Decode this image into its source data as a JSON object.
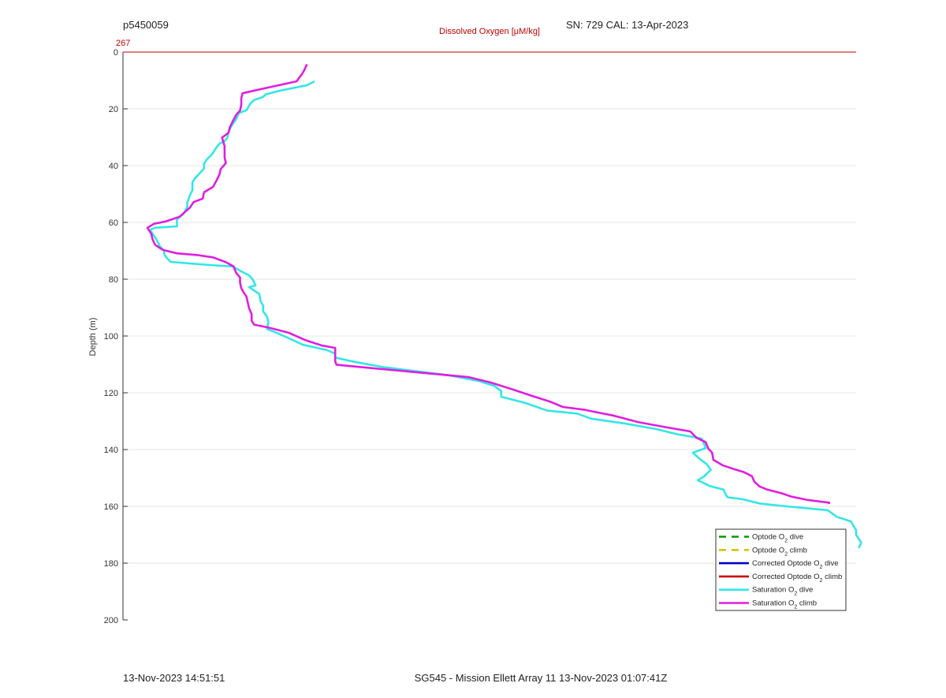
{
  "header": {
    "left": "p5450059",
    "right": "SN: 729  CAL: 13-Apr-2023"
  },
  "footer": {
    "left": "13-Nov-2023 14:51:51",
    "center": "SG545 - Mission Ellett Array 11 13-Nov-2023 01:07:41Z"
  },
  "colors": {
    "axis_label_red": "#c00000",
    "optode_dive": "#009900",
    "optode_climb": "#d4c400",
    "corrected_dive": "#0000cc",
    "corrected_climb": "#cc0000",
    "saturation_dive": "#33e6e6",
    "saturation_climb": "#e01ee0"
  },
  "chart_data": {
    "type": "line",
    "title": "",
    "xlabel": "Dissolved Oxygen [μM/kg]",
    "ylabel": "Depth (m)",
    "x_top_tick_label": "267",
    "ylim": [
      0,
      200
    ],
    "y_reversed": true,
    "xlim": [
      261.3,
      267
    ],
    "yticks": [
      0,
      20,
      40,
      60,
      80,
      100,
      120,
      140,
      160,
      180,
      200
    ],
    "grid": "horizontal",
    "legend_position": "bottom-right",
    "legend": [
      {
        "label_pre": "Optode O",
        "sub": "2",
        "label_post": " dive",
        "style": "dashed",
        "color_key": "optode_dive"
      },
      {
        "label_pre": "Optode O",
        "sub": "2",
        "label_post": " climb",
        "style": "dashed",
        "color_key": "optode_climb"
      },
      {
        "label_pre": "Corrected Optode O",
        "sub": "2",
        "label_post": " dive",
        "style": "solid",
        "color_key": "corrected_dive"
      },
      {
        "label_pre": "Corrected Optode O",
        "sub": "2",
        "label_post": " climb",
        "style": "solid",
        "color_key": "corrected_climb"
      },
      {
        "label_pre": "Saturation O",
        "sub": "2",
        "label_post": " dive",
        "style": "solid",
        "color_key": "saturation_dive"
      },
      {
        "label_pre": "Saturation O",
        "sub": "2",
        "label_post": " climb",
        "style": "solid",
        "color_key": "saturation_climb"
      }
    ],
    "series": [
      {
        "name": "Saturation O2 dive",
        "color_key": "saturation_dive",
        "points": [
          [
            262.79,
            10.3
          ],
          [
            262.73,
            11.7
          ],
          [
            262.53,
            13.5
          ],
          [
            262.41,
            14.9
          ],
          [
            262.39,
            15.8
          ],
          [
            262.32,
            16.9
          ],
          [
            262.29,
            18.2
          ],
          [
            262.26,
            20.5
          ],
          [
            262.2,
            21.5
          ],
          [
            262.18,
            23.6
          ],
          [
            262.14,
            26.3
          ],
          [
            262.12,
            28.2
          ],
          [
            262.11,
            30.3
          ],
          [
            262.09,
            31.3
          ],
          [
            262.05,
            32.3
          ],
          [
            262.03,
            33.4
          ],
          [
            261.99,
            36.1
          ],
          [
            261.95,
            37.9
          ],
          [
            261.93,
            39.4
          ],
          [
            261.93,
            41.0
          ],
          [
            261.89,
            43.0
          ],
          [
            261.86,
            44.4
          ],
          [
            261.84,
            45.9
          ],
          [
            261.84,
            48.7
          ],
          [
            261.82,
            50.5
          ],
          [
            261.8,
            53.0
          ],
          [
            261.8,
            54.5
          ],
          [
            261.77,
            57.0
          ],
          [
            261.72,
            58.9
          ],
          [
            261.72,
            61.4
          ],
          [
            261.55,
            61.9
          ],
          [
            261.51,
            62.6
          ],
          [
            261.56,
            66.0
          ],
          [
            261.59,
            68.6
          ],
          [
            261.62,
            69.9
          ],
          [
            261.62,
            71.2
          ],
          [
            261.64,
            72.5
          ],
          [
            261.67,
            73.9
          ],
          [
            261.97,
            75.0
          ],
          [
            262.15,
            75.5
          ],
          [
            262.23,
            77.5
          ],
          [
            262.28,
            78.6
          ],
          [
            262.31,
            80.2
          ],
          [
            262.33,
            82.2
          ],
          [
            262.28,
            82.8
          ],
          [
            262.36,
            85.2
          ],
          [
            262.37,
            87.8
          ],
          [
            262.39,
            89.3
          ],
          [
            262.39,
            91.3
          ],
          [
            262.42,
            93.2
          ],
          [
            262.43,
            95.1
          ],
          [
            262.42,
            97.5
          ],
          [
            262.51,
            99.2
          ],
          [
            262.59,
            100.8
          ],
          [
            262.7,
            103.1
          ],
          [
            262.88,
            104.9
          ],
          [
            262.95,
            106.2
          ],
          [
            262.95,
            107.6
          ],
          [
            263.1,
            109.1
          ],
          [
            263.33,
            111.0
          ],
          [
            263.83,
            113.8
          ],
          [
            264.07,
            115.9
          ],
          [
            264.19,
            117.6
          ],
          [
            264.24,
            119.4
          ],
          [
            264.24,
            121.4
          ],
          [
            264.43,
            123.6
          ],
          [
            264.6,
            126.3
          ],
          [
            264.83,
            127.3
          ],
          [
            264.94,
            129.1
          ],
          [
            265.21,
            130.9
          ],
          [
            265.45,
            132.8
          ],
          [
            265.61,
            134.6
          ],
          [
            265.8,
            136.1
          ],
          [
            265.82,
            138.3
          ],
          [
            265.83,
            139.5
          ],
          [
            265.73,
            141.1
          ],
          [
            265.78,
            143.1
          ],
          [
            265.84,
            145.2
          ],
          [
            265.87,
            147.1
          ],
          [
            265.82,
            149.4
          ],
          [
            265.77,
            150.8
          ],
          [
            265.86,
            152.8
          ],
          [
            265.97,
            154.1
          ],
          [
            265.98,
            155.3
          ],
          [
            266.0,
            156.8
          ],
          [
            266.12,
            157.5
          ],
          [
            266.25,
            159.0
          ],
          [
            266.46,
            160.0
          ],
          [
            266.78,
            161.4
          ],
          [
            266.85,
            163.7
          ],
          [
            266.96,
            165.3
          ],
          [
            267.0,
            168.4
          ],
          [
            267.0,
            170.0
          ],
          [
            267.04,
            172.8
          ],
          [
            267.02,
            174.7
          ]
        ]
      },
      {
        "name": "Saturation O2 climb",
        "color_key": "saturation_climb",
        "points": [
          [
            262.73,
            4.3
          ],
          [
            262.71,
            6.3
          ],
          [
            262.69,
            7.9
          ],
          [
            262.67,
            9.0
          ],
          [
            262.65,
            10.3
          ],
          [
            262.53,
            11.5
          ],
          [
            262.39,
            12.9
          ],
          [
            262.23,
            14.5
          ],
          [
            262.22,
            16.2
          ],
          [
            262.22,
            18.4
          ],
          [
            262.21,
            20.6
          ],
          [
            262.18,
            22.1
          ],
          [
            262.15,
            24.7
          ],
          [
            262.13,
            26.6
          ],
          [
            262.12,
            28.5
          ],
          [
            262.07,
            30.1
          ],
          [
            262.08,
            31.6
          ],
          [
            262.09,
            33.2
          ],
          [
            262.09,
            35.1
          ],
          [
            262.09,
            37.1
          ],
          [
            262.1,
            39.1
          ],
          [
            262.06,
            41.2
          ],
          [
            262.05,
            43.1
          ],
          [
            262.03,
            45.0
          ],
          [
            262.0,
            47.5
          ],
          [
            261.93,
            49.4
          ],
          [
            261.92,
            51.6
          ],
          [
            261.85,
            52.8
          ],
          [
            261.82,
            54.8
          ],
          [
            261.78,
            56.4
          ],
          [
            261.74,
            58.0
          ],
          [
            261.63,
            59.7
          ],
          [
            261.54,
            60.5
          ],
          [
            261.49,
            61.9
          ],
          [
            261.52,
            64.0
          ],
          [
            261.53,
            66.0
          ],
          [
            261.55,
            67.9
          ],
          [
            261.61,
            69.7
          ],
          [
            261.72,
            70.9
          ],
          [
            261.88,
            71.5
          ],
          [
            262.0,
            72.3
          ],
          [
            262.1,
            74.0
          ],
          [
            262.16,
            75.5
          ],
          [
            262.18,
            77.8
          ],
          [
            262.21,
            79.4
          ],
          [
            262.21,
            81.2
          ],
          [
            262.22,
            83.2
          ],
          [
            262.24,
            84.8
          ],
          [
            262.26,
            86.1
          ],
          [
            262.27,
            88.2
          ],
          [
            262.28,
            90.2
          ],
          [
            262.3,
            92.3
          ],
          [
            262.3,
            94.6
          ],
          [
            262.32,
            96.0
          ],
          [
            262.44,
            97.1
          ],
          [
            262.59,
            98.9
          ],
          [
            262.72,
            101.5
          ],
          [
            262.85,
            103.4
          ],
          [
            262.95,
            104.2
          ],
          [
            262.95,
            107.3
          ],
          [
            262.95,
            108.9
          ],
          [
            262.96,
            110.1
          ],
          [
            263.23,
            111.3
          ],
          [
            263.61,
            112.9
          ],
          [
            263.99,
            114.5
          ],
          [
            264.16,
            116.4
          ],
          [
            264.32,
            118.7
          ],
          [
            264.5,
            121.4
          ],
          [
            264.62,
            123.1
          ],
          [
            264.72,
            125.0
          ],
          [
            264.89,
            126.0
          ],
          [
            265.12,
            128.1
          ],
          [
            265.31,
            130.4
          ],
          [
            265.52,
            132.1
          ],
          [
            265.71,
            133.6
          ],
          [
            265.76,
            135.9
          ],
          [
            265.83,
            137.4
          ],
          [
            265.85,
            139.6
          ],
          [
            265.88,
            141.1
          ],
          [
            265.89,
            143.6
          ],
          [
            265.96,
            145.5
          ],
          [
            266.05,
            146.9
          ],
          [
            266.13,
            148.0
          ],
          [
            266.19,
            149.4
          ],
          [
            266.21,
            151.4
          ],
          [
            266.25,
            153.0
          ],
          [
            266.31,
            154.1
          ],
          [
            266.42,
            155.4
          ],
          [
            266.5,
            156.6
          ],
          [
            266.63,
            157.8
          ],
          [
            266.79,
            158.7
          ],
          [
            266.79,
            159.2
          ]
        ]
      }
    ]
  }
}
